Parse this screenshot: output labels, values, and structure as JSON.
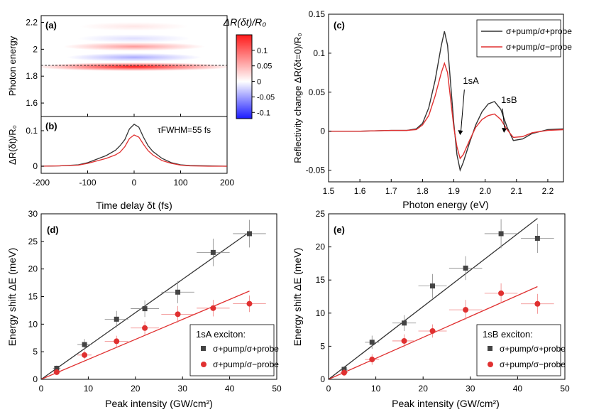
{
  "chart_data": [
    {
      "panel": "(a)",
      "type": "heatmap",
      "ylabel": "Photon energy",
      "xlim": [
        -200,
        200
      ],
      "ylim": [
        1.5,
        2.25
      ],
      "yticks": [
        "1.6",
        "1.8",
        "2",
        "2.2"
      ],
      "colorbar": {
        "title": "ΔR(δt)/R₀",
        "range": [
          -0.12,
          0.15
        ],
        "ticks": [
          "0.1",
          "0.05",
          "0",
          "-0.05",
          "-0.1"
        ],
        "tick_values": [
          0.1,
          0.05,
          0,
          -0.05,
          -0.1
        ],
        "colors": [
          "#1a1aff",
          "#ffffff",
          "#ff1a1a"
        ]
      },
      "reference_line_energy": 1.88,
      "features": [
        {
          "energy": 1.87,
          "value": 0.14
        },
        {
          "energy": 1.94,
          "value": -0.05
        },
        {
          "energy": 2.02,
          "value": 0.06
        },
        {
          "energy": 2.08,
          "value": -0.02
        },
        {
          "energy": 2.17,
          "value": 0.015
        }
      ]
    },
    {
      "panel": "(b)",
      "type": "line",
      "ylabel": "ΔR(δt)/R₀",
      "xlabel": "Time delay δt (fs)",
      "xlim": [
        -200,
        200
      ],
      "ylim": [
        -0.02,
        0.14
      ],
      "xticks": [
        "-200",
        "-100",
        "0",
        "100",
        "200"
      ],
      "yticks": [
        "0",
        "0.1"
      ],
      "annotation": "τFWHM=55 fs",
      "x": [
        -200,
        -160,
        -120,
        -100,
        -80,
        -60,
        -40,
        -30,
        -20,
        -10,
        0,
        10,
        20,
        30,
        40,
        60,
        80,
        100,
        120,
        160,
        200
      ],
      "series": [
        {
          "color": "#333333",
          "values": [
            0,
            0.001,
            0.004,
            0.01,
            0.02,
            0.03,
            0.045,
            0.058,
            0.075,
            0.105,
            0.118,
            0.11,
            0.082,
            0.058,
            0.042,
            0.022,
            0.01,
            0.004,
            0.002,
            0.001,
            0
          ]
        },
        {
          "color": "#e03030",
          "values": [
            0,
            0.001,
            0.003,
            0.008,
            0.015,
            0.022,
            0.032,
            0.04,
            0.055,
            0.078,
            0.088,
            0.082,
            0.062,
            0.044,
            0.032,
            0.016,
            0.008,
            0.003,
            0.001,
            0,
            0
          ]
        }
      ]
    },
    {
      "panel": "(c)",
      "type": "line",
      "xlabel": "Photon energy (eV)",
      "ylabel": "Reflectivity change ΔR(δt=0)/R₀",
      "xlim": [
        1.5,
        2.25
      ],
      "ylim": [
        -0.065,
        0.15
      ],
      "xticks": [
        "1.5",
        "1.6",
        "1.7",
        "1.8",
        "1.9",
        "2.0",
        "2.1",
        "2.2"
      ],
      "yticks": [
        "0.15",
        "0.1",
        "0.05",
        "0",
        "-0.05"
      ],
      "legend": [
        "σ+pump/σ+probe",
        "σ+pump/σ−probe"
      ],
      "annotations": [
        {
          "text": "1sA",
          "x": 1.92,
          "y": -0.005
        },
        {
          "text": "1sB",
          "x": 2.06,
          "y": -0.002
        }
      ],
      "x": [
        1.5,
        1.6,
        1.7,
        1.75,
        1.78,
        1.8,
        1.82,
        1.84,
        1.86,
        1.87,
        1.88,
        1.89,
        1.9,
        1.91,
        1.92,
        1.93,
        1.95,
        1.97,
        1.99,
        2.01,
        2.03,
        2.05,
        2.07,
        2.09,
        2.12,
        2.15,
        2.2,
        2.25
      ],
      "series": [
        {
          "name": "σ+pump/σ+probe",
          "color": "#333333",
          "values": [
            0,
            0,
            0.001,
            0.001,
            0.003,
            0.01,
            0.03,
            0.065,
            0.11,
            0.128,
            0.11,
            0.06,
            0.01,
            -0.03,
            -0.05,
            -0.04,
            -0.015,
            0.008,
            0.025,
            0.035,
            0.038,
            0.028,
            0.005,
            -0.012,
            -0.01,
            -0.003,
            0.002,
            0.003
          ]
        },
        {
          "name": "σ+pump/σ−probe",
          "color": "#e03030",
          "values": [
            0,
            0,
            0.001,
            0.001,
            0.002,
            0.008,
            0.02,
            0.045,
            0.075,
            0.087,
            0.075,
            0.04,
            0.005,
            -0.02,
            -0.035,
            -0.03,
            -0.012,
            0.005,
            0.015,
            0.02,
            0.022,
            0.015,
            0.002,
            -0.008,
            -0.007,
            -0.002,
            0.001,
            0.002
          ]
        }
      ]
    },
    {
      "panel": "(d)",
      "type": "scatter",
      "xlabel": "Peak intensity (GW/cm²)",
      "ylabel": "Energy shift ΔE (meV)",
      "xlim": [
        0,
        50
      ],
      "ylim": [
        0,
        30
      ],
      "xticks": [
        "0",
        "10",
        "20",
        "30",
        "40",
        "50"
      ],
      "yticks": [
        "0",
        "5",
        "10",
        "15",
        "20",
        "25",
        "30"
      ],
      "legend_title": "1sA exciton:",
      "legend": [
        "σ+pump/σ+probe",
        "σ+pump/σ−probe"
      ],
      "series": [
        {
          "name": "σ+pump/σ+probe",
          "color": "#444444",
          "marker": "square",
          "x": [
            3.3,
            9.2,
            16,
            22,
            29,
            36.5,
            44.2
          ],
          "y": [
            2.0,
            6.3,
            10.9,
            12.8,
            15.8,
            23.0,
            26.4
          ],
          "xerr": [
            0.8,
            1.5,
            2.5,
            3.0,
            3.5,
            3.5,
            3.5
          ],
          "yerr": [
            0.5,
            1.0,
            1.5,
            1.5,
            2.0,
            2.5,
            2.5
          ],
          "fit": {
            "x": [
              0,
              44.2
            ],
            "y": [
              0,
              26.7
            ]
          }
        },
        {
          "name": "σ+pump/σ−probe",
          "color": "#e03030",
          "marker": "circle",
          "x": [
            3.3,
            9.2,
            16,
            22,
            29,
            36.5,
            44.2
          ],
          "y": [
            1.3,
            4.4,
            6.9,
            9.3,
            11.8,
            12.9,
            13.7
          ],
          "xerr": [
            0.8,
            1.5,
            2.5,
            3.0,
            3.5,
            3.5,
            3.5
          ],
          "yerr": [
            0.5,
            0.8,
            1.0,
            1.2,
            1.5,
            1.5,
            1.5
          ],
          "fit": {
            "x": [
              0,
              44.2
            ],
            "y": [
              0,
              16.0
            ]
          }
        }
      ]
    },
    {
      "panel": "(e)",
      "type": "scatter",
      "xlabel": "Peak intensity (GW/cm²)",
      "ylabel": "Energy shift ΔE (meV)",
      "xlim": [
        0,
        50
      ],
      "ylim": [
        0,
        25
      ],
      "xticks": [
        "0",
        "10",
        "20",
        "30",
        "40",
        "50"
      ],
      "yticks": [
        "0",
        "5",
        "10",
        "15",
        "20",
        "25"
      ],
      "legend_title": "1sB exciton:",
      "legend": [
        "σ+pump/σ+probe",
        "σ+pump/σ−probe"
      ],
      "series": [
        {
          "name": "σ+pump/σ+probe",
          "color": "#444444",
          "marker": "square",
          "x": [
            3.3,
            9.2,
            16,
            22,
            29,
            36.5,
            44.2
          ],
          "y": [
            1.5,
            5.6,
            8.5,
            14.1,
            16.8,
            22.0,
            21.3
          ],
          "xerr": [
            0.8,
            1.5,
            2.5,
            3.0,
            3.5,
            3.5,
            3.5
          ],
          "yerr": [
            0.5,
            1.0,
            1.2,
            1.8,
            1.8,
            2.2,
            2.2
          ],
          "fit": {
            "x": [
              0,
              44.2
            ],
            "y": [
              0,
              24.3
            ]
          }
        },
        {
          "name": "σ+pump/σ−probe",
          "color": "#e03030",
          "marker": "circle",
          "x": [
            3.3,
            9.2,
            16,
            22,
            29,
            36.5,
            44.2
          ],
          "y": [
            1.0,
            3.0,
            5.8,
            7.3,
            10.5,
            13.0,
            11.4
          ],
          "xerr": [
            0.8,
            1.5,
            2.5,
            3.0,
            3.5,
            3.5,
            3.5
          ],
          "yerr": [
            0.5,
            0.8,
            1.0,
            1.0,
            1.5,
            1.5,
            1.5
          ],
          "fit": {
            "x": [
              0,
              44.2
            ],
            "y": [
              0,
              14.0
            ]
          }
        }
      ]
    }
  ]
}
